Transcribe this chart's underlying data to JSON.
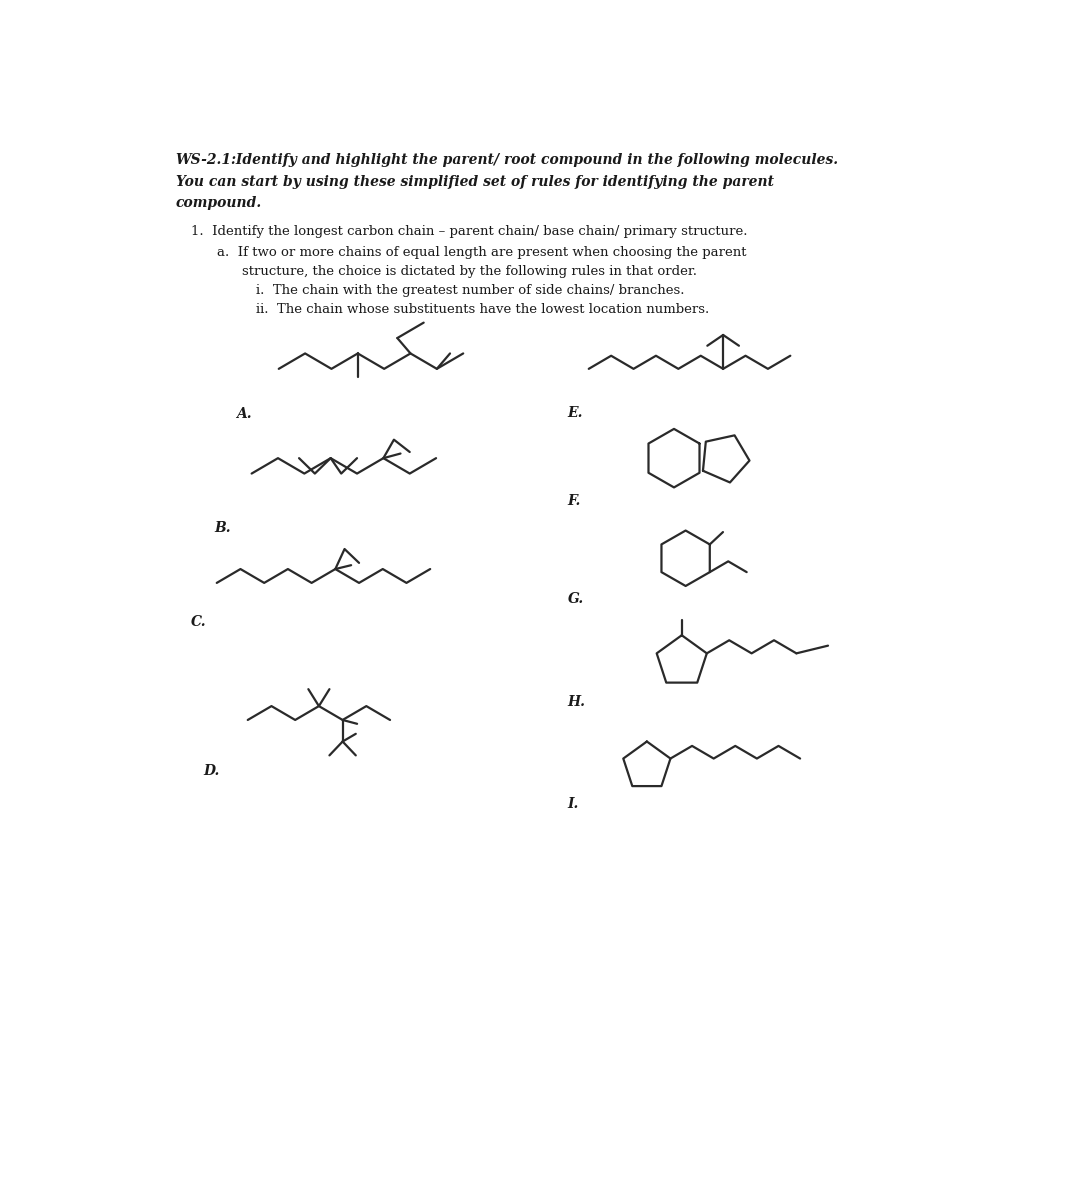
{
  "bg_color": "#ffffff",
  "line_color": "#2a2a2a",
  "label_color": "#1a1a1a",
  "lw": 1.6,
  "title_bold_italic": "WS-2.1:  Identify and highlight the parent/ root compound in the following molecules.\nYou can start by using these simplified set of rules for identifying the parent\ncompound.",
  "rule1_text": "Identify the longest carbon chain – parent chain/ base chain/ primary structure.",
  "rule1a_text": "If two or more chains of equal length are present when choosing the parent\n         structure, the choice is dictated by the following rules in that order.",
  "rule_i_text": "The chain with the greatest number of side chains/ branches.",
  "rule_ii_text": "The chain whose substituents have the lowest location numbers."
}
